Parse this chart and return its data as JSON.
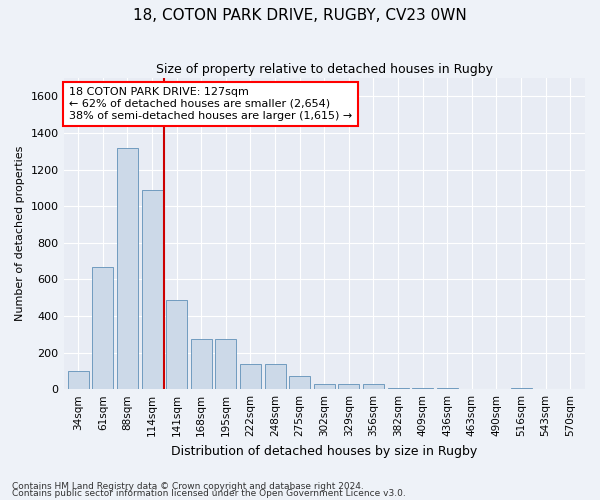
{
  "title1": "18, COTON PARK DRIVE, RUGBY, CV23 0WN",
  "title2": "Size of property relative to detached houses in Rugby",
  "xlabel": "Distribution of detached houses by size in Rugby",
  "ylabel": "Number of detached properties",
  "categories": [
    "34sqm",
    "61sqm",
    "88sqm",
    "114sqm",
    "141sqm",
    "168sqm",
    "195sqm",
    "222sqm",
    "248sqm",
    "275sqm",
    "302sqm",
    "329sqm",
    "356sqm",
    "382sqm",
    "409sqm",
    "436sqm",
    "463sqm",
    "490sqm",
    "516sqm",
    "543sqm",
    "570sqm"
  ],
  "values": [
    100,
    670,
    1320,
    1090,
    490,
    275,
    275,
    140,
    140,
    70,
    30,
    30,
    30,
    5,
    5,
    5,
    0,
    0,
    5,
    0,
    0
  ],
  "bar_color": "#ccd9e8",
  "bar_edge_color": "#6090b8",
  "vline_color": "#cc0000",
  "vline_x_pos": 3.5,
  "annotation_text": "18 COTON PARK DRIVE: 127sqm\n← 62% of detached houses are smaller (2,654)\n38% of semi-detached houses are larger (1,615) →",
  "annotation_box_facecolor": "white",
  "annotation_box_edgecolor": "red",
  "ylim_max": 1700,
  "yticks": [
    0,
    200,
    400,
    600,
    800,
    1000,
    1200,
    1400,
    1600
  ],
  "footer1": "Contains HM Land Registry data © Crown copyright and database right 2024.",
  "footer2": "Contains public sector information licensed under the Open Government Licence v3.0.",
  "fig_facecolor": "#eef2f8",
  "ax_facecolor": "#e8ecf4",
  "title1_fontsize": 11,
  "title2_fontsize": 9,
  "ylabel_fontsize": 8,
  "xlabel_fontsize": 9,
  "tick_fontsize": 8,
  "xtick_fontsize": 7.5,
  "footer_fontsize": 6.5,
  "annot_fontsize": 8
}
